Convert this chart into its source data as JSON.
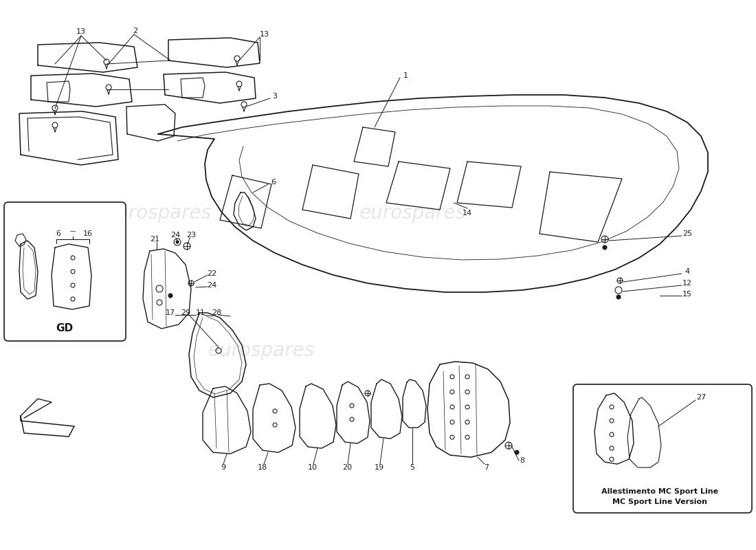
{
  "background_color": "#ffffff",
  "line_color": "#1a1a1a",
  "watermark_text": "eurospares",
  "watermark_color": "#c8c8c8",
  "sport_line_label1": "Allestimento MC Sport Line",
  "sport_line_label2": "MC Sport Line Version",
  "gd_label": "GD",
  "fig_width": 11.0,
  "fig_height": 8.0,
  "dpi": 100
}
